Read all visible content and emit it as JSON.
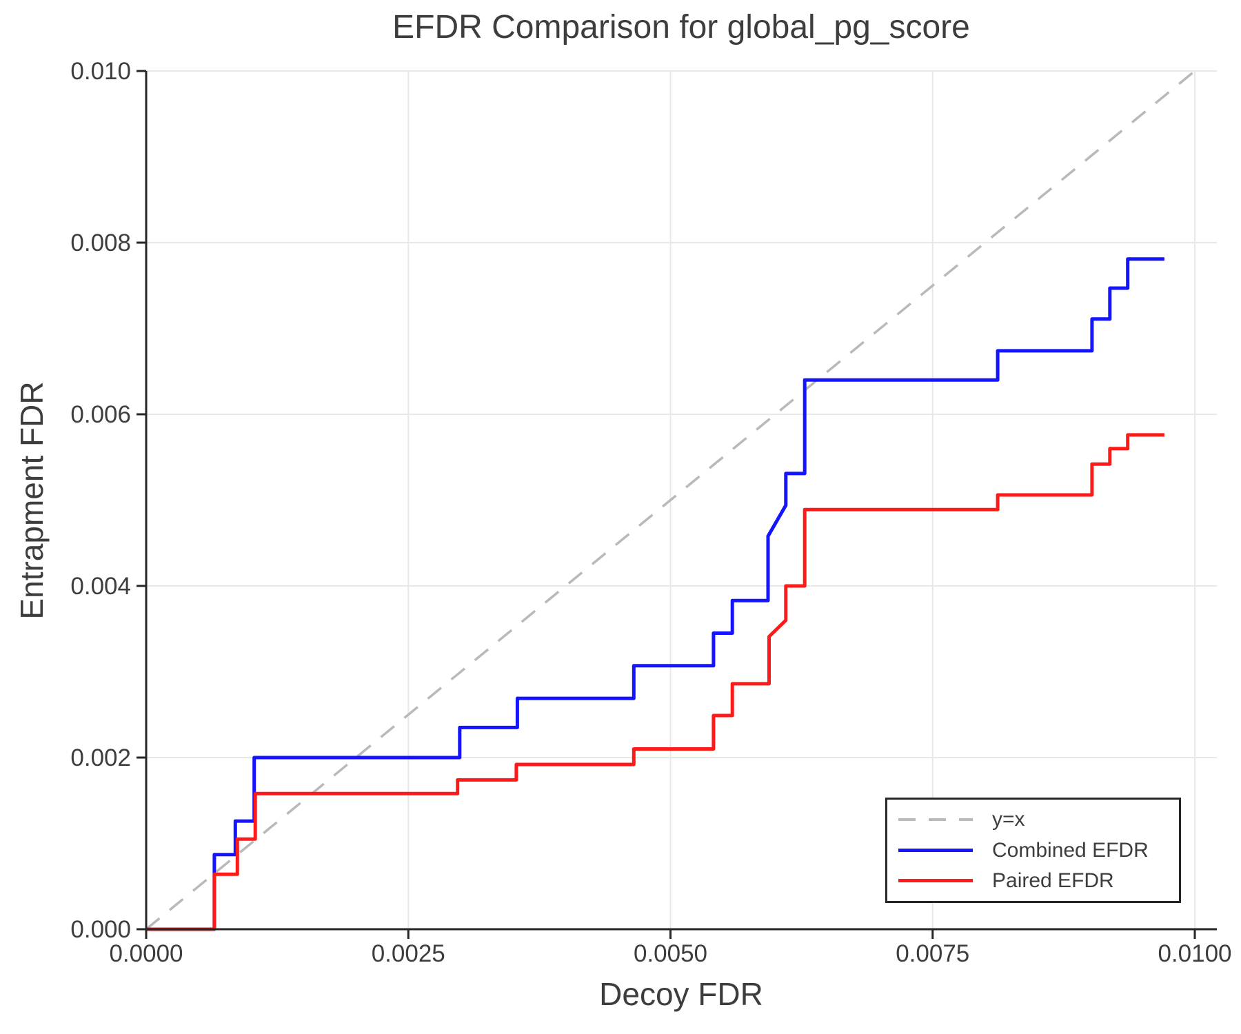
{
  "figure": {
    "background": "#ffffff",
    "text_color": "#3d3d3d",
    "axis_color": "#262626",
    "grid_color": "#e8e8e8"
  },
  "chart_data": {
    "type": "line",
    "title": "EFDR Comparison for global_pg_score",
    "xlabel": "Decoy FDR",
    "ylabel": "Entrapment FDR",
    "xlim": [
      0,
      0.0102
    ],
    "ylim": [
      0,
      0.01
    ],
    "grid": true,
    "x_ticks": [
      0,
      0.0025,
      0.005,
      0.0075,
      0.01
    ],
    "x_tick_labels": [
      "0.0000",
      "0.0025",
      "0.0050",
      "0.0075",
      "0.0100"
    ],
    "y_ticks": [
      0,
      0.002,
      0.004,
      0.006,
      0.008,
      0.01
    ],
    "y_tick_labels": [
      "0.000",
      "0.002",
      "0.004",
      "0.006",
      "0.008",
      "0.010"
    ],
    "legend": {
      "position": "lower right",
      "entries": [
        "y=x",
        "Combined EFDR",
        "Paired EFDR"
      ]
    },
    "series": [
      {
        "id": "reference-line-y-equals-x",
        "name": "y=x",
        "style": "dashed",
        "color": "#b9b9b9",
        "points": [
          [
            0,
            0
          ],
          [
            0.01,
            0.01
          ]
        ]
      },
      {
        "id": "combined-efdr-line",
        "name": "Combined EFDR",
        "style": "solid",
        "color": "#1414ff",
        "points": [
          [
            0,
            0
          ],
          [
            0.00065,
            0
          ],
          [
            0.00065,
            0.00087
          ],
          [
            0.00085,
            0.00087
          ],
          [
            0.00085,
            0.00126
          ],
          [
            0.00103,
            0.00126
          ],
          [
            0.00103,
            0.002
          ],
          [
            0.00299,
            0.002
          ],
          [
            0.00299,
            0.00235
          ],
          [
            0.00354,
            0.00235
          ],
          [
            0.00354,
            0.00269
          ],
          [
            0.00465,
            0.00269
          ],
          [
            0.00465,
            0.00307
          ],
          [
            0.00541,
            0.00307
          ],
          [
            0.00541,
            0.00345
          ],
          [
            0.00559,
            0.00345
          ],
          [
            0.00559,
            0.00383
          ],
          [
            0.00593,
            0.00383
          ],
          [
            0.00593,
            0.00458
          ],
          [
            0.0061,
            0.00494
          ],
          [
            0.0061,
            0.00531
          ],
          [
            0.00628,
            0.00531
          ],
          [
            0.00628,
            0.0064
          ],
          [
            0.00812,
            0.0064
          ],
          [
            0.00812,
            0.00674
          ],
          [
            0.00902,
            0.00674
          ],
          [
            0.00902,
            0.00711
          ],
          [
            0.00919,
            0.00711
          ],
          [
            0.00919,
            0.00747
          ],
          [
            0.00936,
            0.00747
          ],
          [
            0.00936,
            0.00781
          ],
          [
            0.00971,
            0.00781
          ]
        ]
      },
      {
        "id": "paired-efdr-line",
        "name": "Paired EFDR",
        "style": "solid",
        "color": "#ff1a1a",
        "points": [
          [
            0,
            0
          ],
          [
            0.00065,
            0
          ],
          [
            0.00065,
            0.00064
          ],
          [
            0.00087,
            0.00064
          ],
          [
            0.00087,
            0.00105
          ],
          [
            0.00104,
            0.00105
          ],
          [
            0.00104,
            0.00158
          ],
          [
            0.00297,
            0.00158
          ],
          [
            0.00297,
            0.00174
          ],
          [
            0.00353,
            0.00174
          ],
          [
            0.00353,
            0.00192
          ],
          [
            0.00465,
            0.00192
          ],
          [
            0.00465,
            0.0021
          ],
          [
            0.00541,
            0.0021
          ],
          [
            0.00541,
            0.00249
          ],
          [
            0.00559,
            0.00249
          ],
          [
            0.00559,
            0.00286
          ],
          [
            0.00594,
            0.00286
          ],
          [
            0.00594,
            0.00341
          ],
          [
            0.0061,
            0.0036
          ],
          [
            0.0061,
            0.004
          ],
          [
            0.00628,
            0.004
          ],
          [
            0.00628,
            0.00489
          ],
          [
            0.00812,
            0.00489
          ],
          [
            0.00812,
            0.00506
          ],
          [
            0.00902,
            0.00506
          ],
          [
            0.00902,
            0.00542
          ],
          [
            0.00919,
            0.00542
          ],
          [
            0.00919,
            0.0056
          ],
          [
            0.00936,
            0.0056
          ],
          [
            0.00936,
            0.00576
          ],
          [
            0.00971,
            0.00576
          ]
        ]
      }
    ]
  }
}
